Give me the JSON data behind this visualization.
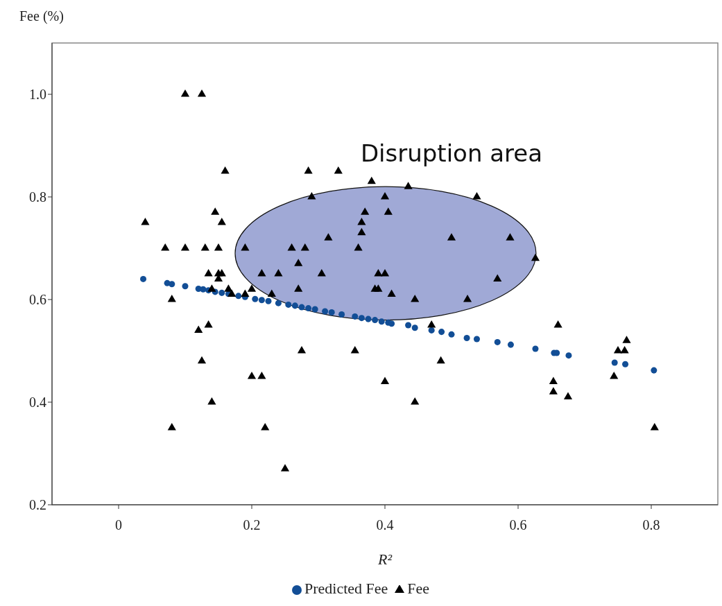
{
  "chart_data": {
    "type": "scatter",
    "ylabel": "Fee (%)",
    "xlabel": "R²",
    "annotations": [
      "Disruption area"
    ],
    "xlim": [
      -0.1,
      0.9
    ],
    "ylim": [
      0.2,
      1.1
    ],
    "xticks": [
      0,
      0.2,
      0.4,
      0.6,
      0.8
    ],
    "yticks": [
      0.2,
      0.4,
      0.6,
      0.8,
      {
        "value": 1,
        "label": "1.0"
      }
    ],
    "legend": "bottom",
    "series": [
      {
        "name": "Predicted Fee",
        "color": "#124e96",
        "marker": "circle",
        "x": [
          0.037,
          0.073,
          0.08,
          0.1,
          0.12,
          0.127,
          0.135,
          0.145,
          0.155,
          0.165,
          0.18,
          0.19,
          0.205,
          0.215,
          0.225,
          0.24,
          0.255,
          0.265,
          0.275,
          0.285,
          0.295,
          0.31,
          0.32,
          0.335,
          0.355,
          0.365,
          0.375,
          0.385,
          0.395,
          0.405,
          0.41,
          0.435,
          0.445,
          0.47,
          0.485,
          0.5,
          0.523,
          0.538,
          0.569,
          0.589,
          0.626,
          0.654,
          0.658,
          0.676,
          0.745,
          0.761,
          0.804
        ],
        "values": [
          0.64,
          0.632,
          0.63,
          0.626,
          0.621,
          0.62,
          0.618,
          0.615,
          0.613,
          0.611,
          0.607,
          0.605,
          0.601,
          0.599,
          0.597,
          0.593,
          0.59,
          0.588,
          0.585,
          0.583,
          0.581,
          0.577,
          0.575,
          0.571,
          0.567,
          0.564,
          0.562,
          0.56,
          0.557,
          0.555,
          0.553,
          0.55,
          0.545,
          0.54,
          0.537,
          0.532,
          0.525,
          0.523,
          0.517,
          0.512,
          0.504,
          0.496,
          0.496,
          0.491,
          0.477,
          0.474,
          0.462
        ]
      },
      {
        "name": "Fee",
        "color": "#000000",
        "marker": "triangle",
        "x": [
          0.04,
          0.07,
          0.08,
          0.08,
          0.1,
          0.125,
          0.1,
          0.12,
          0.125,
          0.13,
          0.135,
          0.135,
          0.14,
          0.145,
          0.15,
          0.15,
          0.155,
          0.155,
          0.15,
          0.16,
          0.14,
          0.165,
          0.17,
          0.19,
          0.19,
          0.2,
          0.2,
          0.215,
          0.22,
          0.215,
          0.23,
          0.24,
          0.25,
          0.26,
          0.27,
          0.27,
          0.275,
          0.28,
          0.285,
          0.29,
          0.305,
          0.315,
          0.33,
          0.355,
          0.36,
          0.365,
          0.365,
          0.37,
          0.38,
          0.385,
          0.39,
          0.39,
          0.4,
          0.4,
          0.405,
          0.4,
          0.41,
          0.435,
          0.445,
          0.445,
          0.47,
          0.538,
          0.5,
          0.588,
          0.626,
          0.569,
          0.524,
          0.484,
          0.66,
          0.763,
          0.75,
          0.76,
          0.653,
          0.653,
          0.675,
          0.744,
          0.805
        ],
        "values": [
          0.75,
          0.7,
          0.6,
          0.35,
          1.0,
          1.0,
          0.7,
          0.54,
          0.48,
          0.7,
          0.65,
          0.55,
          0.4,
          0.77,
          0.7,
          0.65,
          0.75,
          0.65,
          0.64,
          0.85,
          0.62,
          0.62,
          0.61,
          0.7,
          0.61,
          0.62,
          0.45,
          0.45,
          0.35,
          0.65,
          0.61,
          0.65,
          0.27,
          0.7,
          0.67,
          0.62,
          0.5,
          0.7,
          0.85,
          0.8,
          0.65,
          0.72,
          0.85,
          0.5,
          0.7,
          0.73,
          0.75,
          0.77,
          0.83,
          0.62,
          0.62,
          0.65,
          0.65,
          0.8,
          0.77,
          0.44,
          0.61,
          0.82,
          0.6,
          0.4,
          0.55,
          0.8,
          0.72,
          0.72,
          0.68,
          0.64,
          0.6,
          0.48,
          0.55,
          0.52,
          0.5,
          0.5,
          0.44,
          0.42,
          0.41,
          0.45,
          0.35
        ]
      }
    ]
  }
}
